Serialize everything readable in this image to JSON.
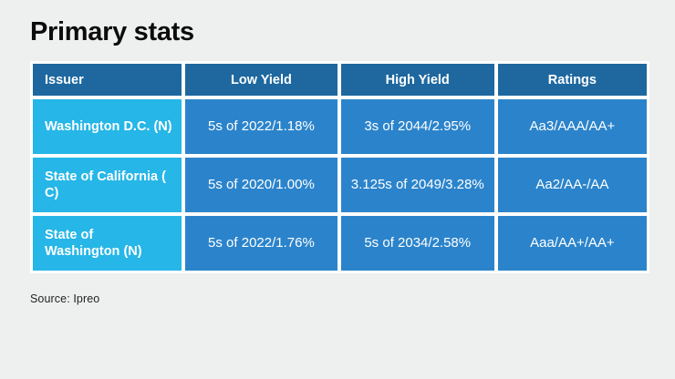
{
  "page": {
    "title": "Primary stats",
    "source": "Source: Ipreo"
  },
  "colors": {
    "background": "#eef0ef",
    "header_blue": "#1e689f",
    "issuer_cyan": "#26b6e7",
    "cell_blue": "#2b84cb",
    "grid_white": "#ffffff",
    "text_white": "#ffffff",
    "title_black": "#0c0c0c",
    "source_gray": "#232323"
  },
  "table": {
    "columns": [
      "Issuer",
      "Low Yield",
      "High Yield",
      "Ratings"
    ],
    "rows": [
      {
        "issuer": "Washington D.C. (N)",
        "low_yield": "5s of 2022/1.18%",
        "high_yield": "3s of 2044/2.95%",
        "ratings": "Aa3/AAA/AA+"
      },
      {
        "issuer": "State of California (\nC)",
        "low_yield": "5s of 2020/1.00%",
        "high_yield": "3.125s of 2049/3.28%",
        "ratings": "Aa2/AA-/AA"
      },
      {
        "issuer": "State of\nWashington (N)",
        "low_yield": "5s of 2022/1.76%",
        "high_yield": "5s of 2034/2.58%",
        "ratings": "Aaa/AA+/AA+"
      }
    ]
  },
  "chart_data": {
    "type": "table",
    "title": "Primary stats",
    "columns": [
      "Issuer",
      "Low Yield",
      "High Yield",
      "Ratings"
    ],
    "rows": [
      [
        "Washington D.C. (N)",
        "5s of 2022/1.18%",
        "3s of 2044/2.95%",
        "Aa3/AAA/AA+"
      ],
      [
        "State of California ( C)",
        "5s of 2020/1.00%",
        "3.125s of 2049/3.28%",
        "Aa2/AA-/AA"
      ],
      [
        "State of Washington (N)",
        "5s of 2022/1.76%",
        "5s of 2034/2.58%",
        "Aaa/AA+/AA+"
      ]
    ],
    "source": "Source: Ipreo"
  }
}
